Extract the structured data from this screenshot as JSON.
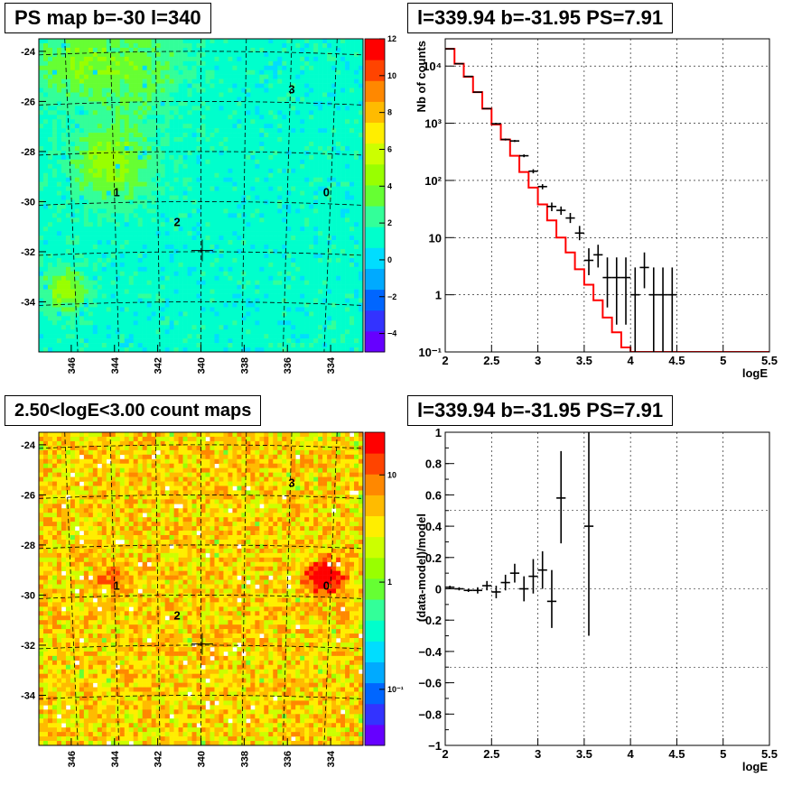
{
  "panels": {
    "top_left_title": "PS map b=-30 l=340",
    "top_right_title": "l=339.94 b=-31.95 PS=7.91",
    "bottom_left_title": "2.50<logE<3.00 count maps",
    "bottom_right_title": "l=339.94 b=-31.95 PS=7.91"
  },
  "chart_data": [
    {
      "type": "heatmap",
      "title": "PS map b=-30 l=340",
      "x_ticks": [
        "346",
        "344",
        "342",
        "340",
        "338",
        "336",
        "334"
      ],
      "y_ticks": [
        "-24",
        "-26",
        "-28",
        "-30",
        "-32",
        "-34"
      ],
      "xlim": [
        347.5,
        332.5
      ],
      "ylim": [
        -36,
        -23.5
      ],
      "colorbar_ticks": [
        "12",
        "10",
        "8",
        "6",
        "4",
        "2",
        "0",
        "−2",
        "−4"
      ],
      "colorbar_range": [
        -5,
        12
      ],
      "colormap": [
        "#6600ff",
        "#3333ff",
        "#0066ff",
        "#00aaff",
        "#00ddff",
        "#00ffcc",
        "#33ff99",
        "#66ff33",
        "#99ff00",
        "#ccff00",
        "#ffee00",
        "#ffbb00",
        "#ff8800",
        "#ff4400",
        "#ff0000"
      ],
      "background_level": 1,
      "source_labels": [
        {
          "text": "0",
          "l": 334.2,
          "b": -29.6
        },
        {
          "text": "1",
          "l": 343.9,
          "b": -29.6
        },
        {
          "text": "2",
          "l": 341.1,
          "b": -30.8
        },
        {
          "text": "3",
          "l": 335.8,
          "b": -25.5
        }
      ],
      "marker": {
        "l": 339.94,
        "b": -31.95
      }
    },
    {
      "type": "line",
      "title": "l=339.94 b=-31.95 PS=7.91",
      "xlabel": "logE",
      "ylabel": "Nb of counts",
      "xlim": [
        2,
        5.5
      ],
      "ylim": [
        0.1,
        30000
      ],
      "yscale": "log",
      "x_ticks": [
        "2",
        "2.5",
        "3",
        "3.5",
        "4",
        "4.5",
        "5",
        "5.5"
      ],
      "y_ticks": [
        {
          "v": 10000,
          "label": "10⁴"
        },
        {
          "v": 1000,
          "label": "10³"
        },
        {
          "v": 100,
          "label": "10²"
        },
        {
          "v": 10,
          "label": "10"
        },
        {
          "v": 1,
          "label": "1"
        },
        {
          "v": 0.1,
          "label": "10⁻¹"
        }
      ],
      "grid": true,
      "model_color": "#ff0000",
      "model_steps": [
        {
          "x0": 2.0,
          "x1": 2.1,
          "y": 20000
        },
        {
          "x0": 2.1,
          "x1": 2.2,
          "y": 11000
        },
        {
          "x0": 2.2,
          "x1": 2.3,
          "y": 6500
        },
        {
          "x0": 2.3,
          "x1": 2.4,
          "y": 3500
        },
        {
          "x0": 2.4,
          "x1": 2.5,
          "y": 1800
        },
        {
          "x0": 2.5,
          "x1": 2.6,
          "y": 950
        },
        {
          "x0": 2.6,
          "x1": 2.7,
          "y": 520
        },
        {
          "x0": 2.7,
          "x1": 2.8,
          "y": 270
        },
        {
          "x0": 2.8,
          "x1": 2.9,
          "y": 140
        },
        {
          "x0": 2.9,
          "x1": 3.0,
          "y": 75
        },
        {
          "x0": 3.0,
          "x1": 3.1,
          "y": 38
        },
        {
          "x0": 3.1,
          "x1": 3.2,
          "y": 20
        },
        {
          "x0": 3.2,
          "x1": 3.3,
          "y": 10
        },
        {
          "x0": 3.3,
          "x1": 3.4,
          "y": 5.5
        },
        {
          "x0": 3.4,
          "x1": 3.5,
          "y": 2.8
        },
        {
          "x0": 3.5,
          "x1": 3.6,
          "y": 1.5
        },
        {
          "x0": 3.6,
          "x1": 3.7,
          "y": 0.8
        },
        {
          "x0": 3.7,
          "x1": 3.8,
          "y": 0.4
        },
        {
          "x0": 3.8,
          "x1": 3.9,
          "y": 0.22
        },
        {
          "x0": 3.9,
          "x1": 4.0,
          "y": 0.12
        },
        {
          "x0": 4.0,
          "x1": 5.5,
          "y": 0.1
        }
      ],
      "data_points": [
        {
          "x": 2.05,
          "y": 20000,
          "lo": 19800,
          "hi": 20200
        },
        {
          "x": 2.15,
          "y": 11000,
          "lo": 10900,
          "hi": 11100
        },
        {
          "x": 2.25,
          "y": 6600,
          "lo": 6500,
          "hi": 6700
        },
        {
          "x": 2.35,
          "y": 3500,
          "lo": 3440,
          "hi": 3560
        },
        {
          "x": 2.45,
          "y": 1800,
          "lo": 1760,
          "hi": 1840
        },
        {
          "x": 2.55,
          "y": 980,
          "lo": 950,
          "hi": 1010
        },
        {
          "x": 2.65,
          "y": 520,
          "lo": 500,
          "hi": 540
        },
        {
          "x": 2.75,
          "y": 490,
          "lo": 470,
          "hi": 510
        },
        {
          "x": 2.85,
          "y": 270,
          "lo": 255,
          "hi": 285
        },
        {
          "x": 2.95,
          "y": 145,
          "lo": 133,
          "hi": 157
        },
        {
          "x": 3.05,
          "y": 78,
          "lo": 70,
          "hi": 86
        },
        {
          "x": 3.15,
          "y": 35,
          "lo": 29,
          "hi": 41
        },
        {
          "x": 3.25,
          "y": 30,
          "lo": 25,
          "hi": 35
        },
        {
          "x": 3.35,
          "y": 22,
          "lo": 18,
          "hi": 27
        },
        {
          "x": 3.45,
          "y": 12,
          "lo": 9,
          "hi": 16
        },
        {
          "x": 3.55,
          "y": 4,
          "lo": 2.2,
          "hi": 6.5
        },
        {
          "x": 3.65,
          "y": 5,
          "lo": 3,
          "hi": 7.5
        },
        {
          "x": 3.75,
          "y": 2,
          "lo": 0.6,
          "hi": 4.5
        },
        {
          "x": 3.85,
          "y": 2,
          "lo": 0.3,
          "hi": 4.5
        },
        {
          "x": 3.95,
          "y": 2,
          "lo": 0.3,
          "hi": 4.5
        },
        {
          "x": 4.05,
          "y": 1,
          "lo": 0.1,
          "hi": 3
        },
        {
          "x": 4.15,
          "y": 3,
          "lo": 1.3,
          "hi": 5.5
        },
        {
          "x": 4.25,
          "y": 1,
          "lo": 0.1,
          "hi": 3
        },
        {
          "x": 4.35,
          "y": 1,
          "lo": 0.1,
          "hi": 3
        },
        {
          "x": 4.45,
          "y": 1,
          "lo": 0.1,
          "hi": 3
        }
      ]
    },
    {
      "type": "heatmap",
      "title": "2.50<logE<3.00 count maps",
      "x_ticks": [
        "346",
        "344",
        "342",
        "340",
        "338",
        "336",
        "334"
      ],
      "y_ticks": [
        "-24",
        "-26",
        "-28",
        "-30",
        "-32",
        "-34"
      ],
      "xlim": [
        347.5,
        332.5
      ],
      "ylim": [
        -36,
        -23.5
      ],
      "colorbar_ticks": [
        {
          "v": 10,
          "label": "10"
        },
        {
          "v": 1,
          "label": "1"
        },
        {
          "v": 0.1,
          "label": "10⁻¹"
        }
      ],
      "colorbar_range": [
        0.03,
        25
      ],
      "colormap": [
        "#6600ff",
        "#3333ff",
        "#0066ff",
        "#00aaff",
        "#00ddff",
        "#00ffcc",
        "#33ff99",
        "#66ff33",
        "#99ff00",
        "#ccff00",
        "#ffee00",
        "#ffbb00",
        "#ff8800",
        "#ff4400",
        "#ff0000"
      ],
      "source_labels": [
        {
          "text": "0",
          "l": 334.2,
          "b": -29.6
        },
        {
          "text": "1",
          "l": 343.9,
          "b": -29.6
        },
        {
          "text": "2",
          "l": 341.1,
          "b": -30.8
        },
        {
          "text": "3",
          "l": 335.8,
          "b": -25.5
        }
      ],
      "marker": {
        "l": 339.94,
        "b": -31.95
      }
    },
    {
      "type": "scatter",
      "title": "l=339.94 b=-31.95 PS=7.91",
      "xlabel": "logE",
      "ylabel": "(data-model)/model",
      "xlim": [
        2,
        5.5
      ],
      "ylim": [
        -1,
        1
      ],
      "x_ticks": [
        "2",
        "2.5",
        "3",
        "3.5",
        "4",
        "4.5",
        "5",
        "5.5"
      ],
      "y_ticks": [
        "1",
        "0.8",
        "0.6",
        "0.4",
        "0.2",
        "0",
        "−0.2",
        "−0.4",
        "−0.6",
        "−0.8",
        "−1"
      ],
      "grid": true,
      "data_points": [
        {
          "x": 2.05,
          "y": 0.01,
          "lo": 0.0,
          "hi": 0.02
        },
        {
          "x": 2.15,
          "y": 0.0,
          "lo": -0.01,
          "hi": 0.01
        },
        {
          "x": 2.25,
          "y": -0.01,
          "lo": -0.02,
          "hi": 0.0
        },
        {
          "x": 2.35,
          "y": -0.01,
          "lo": -0.03,
          "hi": 0.01
        },
        {
          "x": 2.45,
          "y": 0.02,
          "lo": -0.01,
          "hi": 0.05
        },
        {
          "x": 2.55,
          "y": -0.02,
          "lo": -0.06,
          "hi": 0.02
        },
        {
          "x": 2.65,
          "y": 0.04,
          "lo": -0.01,
          "hi": 0.09
        },
        {
          "x": 2.75,
          "y": 0.1,
          "lo": 0.04,
          "hi": 0.16
        },
        {
          "x": 2.85,
          "y": 0.0,
          "lo": -0.08,
          "hi": 0.08
        },
        {
          "x": 2.95,
          "y": 0.08,
          "lo": -0.03,
          "hi": 0.19
        },
        {
          "x": 3.05,
          "y": 0.12,
          "lo": 0.0,
          "hi": 0.24
        },
        {
          "x": 3.15,
          "y": -0.08,
          "lo": -0.25,
          "hi": 0.12
        },
        {
          "x": 3.25,
          "y": 0.58,
          "lo": 0.29,
          "hi": 0.88
        },
        {
          "x": 3.55,
          "y": 0.4,
          "lo": -0.3,
          "hi": 1.0
        }
      ]
    }
  ]
}
